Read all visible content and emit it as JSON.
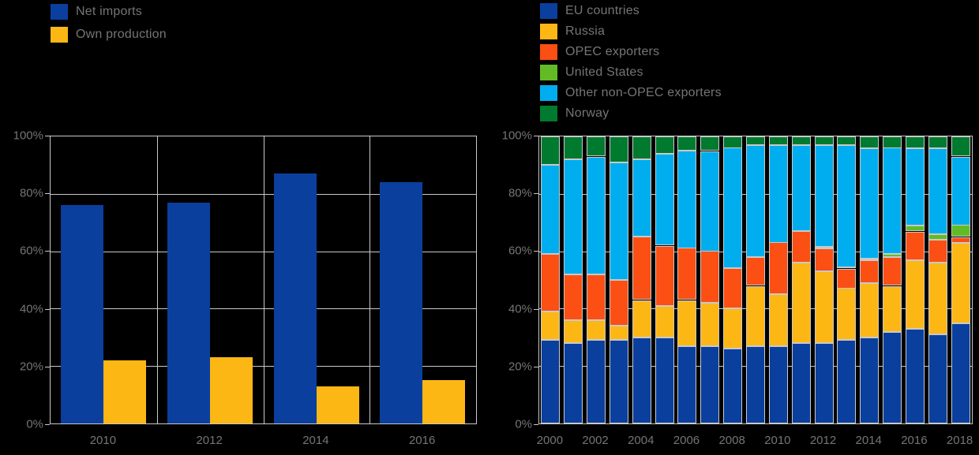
{
  "background_color": "#000000",
  "text_color": "#757575",
  "grid_color": "#c9c9c9",
  "chart_data": [
    {
      "type": "bar",
      "title": "",
      "categories": [
        "2010",
        "2012",
        "2014",
        "2016"
      ],
      "series": [
        {
          "name": "Net imports",
          "color": "#0a3f9e",
          "values": [
            76,
            77,
            87,
            84
          ]
        },
        {
          "name": "Own production",
          "color": "#fdb714",
          "values": [
            22,
            23,
            13,
            15
          ]
        }
      ],
      "xlabel": "",
      "ylabel": "",
      "ylim": [
        0,
        100
      ],
      "yticks": [
        "0%",
        "20%",
        "40%",
        "60%",
        "80%",
        "100%"
      ],
      "grid": true,
      "legend_position": "top-left"
    },
    {
      "type": "stacked-bar",
      "title": "",
      "categories": [
        "2000",
        "2001",
        "2002",
        "2003",
        "2004",
        "2005",
        "2006",
        "2007",
        "2008",
        "2009",
        "2010",
        "2011",
        "2012",
        "2013",
        "2014",
        "2015",
        "2016",
        "2017",
        "2018"
      ],
      "xtick_labels": [
        "2000",
        "2002",
        "2004",
        "2006",
        "2008",
        "2010",
        "2012",
        "2014",
        "2016",
        "2018"
      ],
      "xtick_step": 2,
      "series": [
        {
          "name": "EU countries",
          "color": "#0a3f9e",
          "values": [
            29,
            28,
            29,
            29,
            30,
            30,
            27,
            27,
            26,
            27,
            27,
            28,
            28,
            29,
            30,
            32,
            33,
            31,
            35
          ]
        },
        {
          "name": "Russia",
          "color": "#fdb714",
          "values": [
            10,
            8,
            7,
            5,
            13,
            11,
            16,
            15,
            14,
            21,
            18,
            28,
            25,
            18,
            19,
            16,
            24,
            25,
            28
          ]
        },
        {
          "name": "OPEC exporters",
          "color": "#fb4f14",
          "values": [
            20,
            16,
            16,
            16,
            22,
            21,
            18,
            18,
            14,
            10,
            18,
            11,
            8,
            7,
            8,
            10,
            10,
            8,
            2
          ]
        },
        {
          "name": "United States",
          "color": "#62bb25",
          "values": [
            0,
            0,
            0,
            0,
            0,
            0,
            0,
            0,
            0,
            0,
            0,
            0,
            0.5,
            0.5,
            0.5,
            1,
            2,
            2,
            4
          ]
        },
        {
          "name": "Other non-OPEC exporters",
          "color": "#00aeef",
          "values": [
            31,
            40,
            41,
            41,
            27,
            32,
            34,
            35,
            42,
            39,
            34,
            30,
            35.5,
            42.5,
            38.5,
            37,
            27,
            30,
            24
          ]
        },
        {
          "name": "Norway",
          "color": "#007a2f",
          "values": [
            10,
            8,
            7,
            9,
            8,
            6,
            5,
            5,
            4,
            3,
            3,
            3,
            3,
            3,
            4,
            4,
            4,
            4,
            7
          ]
        }
      ],
      "xlabel": "",
      "ylabel": "",
      "ylim": [
        0,
        100
      ],
      "yticks": [
        "0%",
        "20%",
        "40%",
        "60%",
        "80%",
        "100%"
      ],
      "grid": true,
      "legend_position": "top-left"
    }
  ]
}
